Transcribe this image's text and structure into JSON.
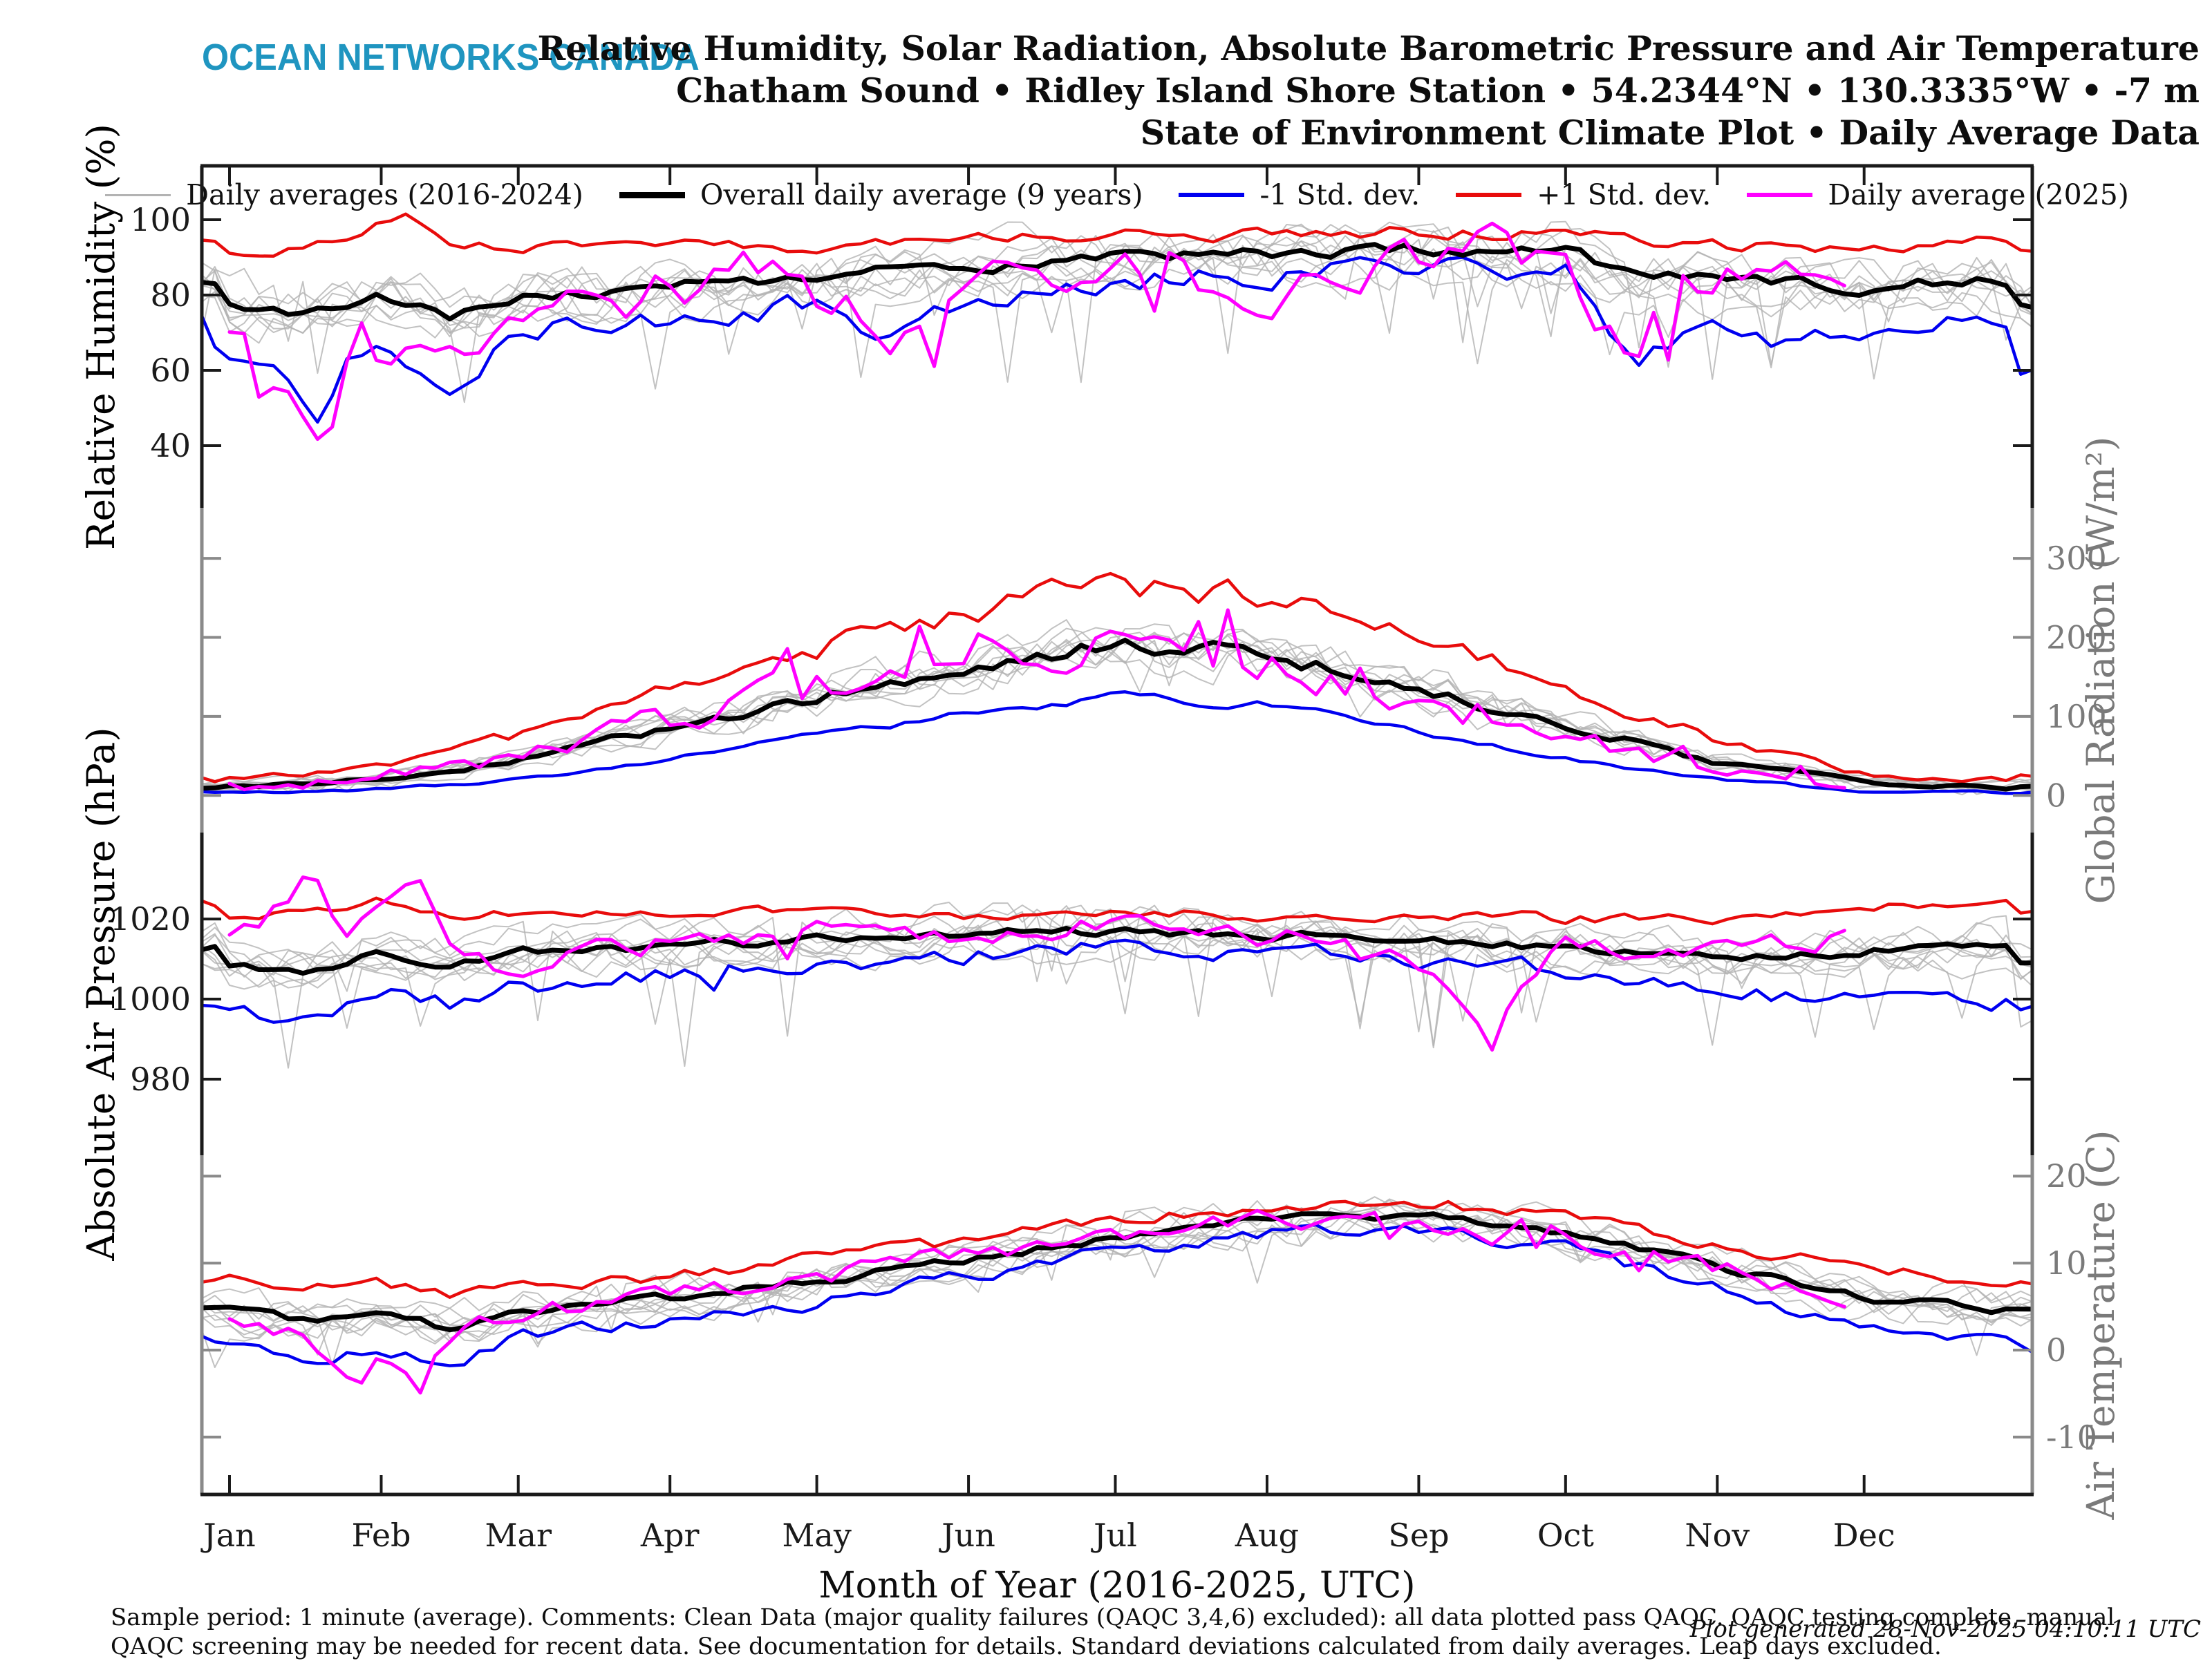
{
  "header": {
    "logo": "OCEAN NETWORKS CANADA",
    "title_lines": [
      "Relative Humidity, Solar Radiation, Absolute Barometric Pressure and Air Temperature",
      "Chatham Sound • Ridley Island Shore Station • 54.2344°N • 130.3335°W • -7 m",
      "State of Environment Climate Plot • Daily Average Data"
    ]
  },
  "legend": [
    {
      "label": "Daily averages (2016-2024)",
      "color": "#b3b3b3",
      "weight": 3
    },
    {
      "label": "Overall daily average (9 years)",
      "color": "#000000",
      "weight": 9
    },
    {
      "label": "-1 Std. dev.",
      "color": "#0000f0",
      "weight": 6
    },
    {
      "label": "+1 Std. dev.",
      "color": "#e80c0c",
      "weight": 6
    },
    {
      "label": "Daily average (2025)",
      "color": "#ff00ff",
      "weight": 6
    }
  ],
  "chart_data": {
    "type": "line",
    "title": "Relative Humidity, Solar Radiation, Absolute Barometric Pressure and Air Temperature",
    "x_axis": {
      "title": "Month of Year (2016-2025, UTC)",
      "tick_labels": [
        "Jan",
        "Feb",
        "Mar",
        "Apr",
        "May",
        "Jun",
        "Jul",
        "Aug",
        "Sep",
        "Oct",
        "Nov",
        "Dec"
      ],
      "tick_days": [
        0,
        31,
        59,
        90,
        120,
        151,
        181,
        212,
        243,
        273,
        304,
        334
      ],
      "days_per_year": 365,
      "grid": false,
      "legend_position": "top-center"
    },
    "series_meta": {
      "gray": {
        "label": "Daily averages (2016-2024)",
        "color": "#b3b3b3",
        "years": 9
      },
      "mean": {
        "label": "Overall daily average (9 years)",
        "color": "#000000"
      },
      "minus": {
        "label": "-1 Std. dev.",
        "color": "#0000f0"
      },
      "plus": {
        "label": "+1 Std. dev.",
        "color": "#e80c0c"
      },
      "y2025": {
        "label": "Daily average (2025)",
        "color": "#ff00ff",
        "ends_day": 331
      }
    },
    "panels": [
      {
        "id": "rh",
        "ylabel": "Relative Humidity (%)",
        "label_side": "left",
        "axis_color": "#1a1a1a",
        "ylim": [
          23.5,
          114.3
        ],
        "yticks": [
          40,
          60,
          80,
          100
        ],
        "seasonal_noise": false,
        "clamp_max": 100.5,
        "gray": {
          "offset": 4.5,
          "noise": 5.5,
          "spike_p": 0.03,
          "spike_amp": -30
        },
        "series": {
          "mean": {
            "noise": 1.6,
            "days": [
              0,
              15,
              31,
              45,
              59,
              90,
              120,
              151,
              181,
              212,
              243,
              273,
              288,
              304,
              334,
              364
            ],
            "values": [
              78,
              76,
              80,
              74,
              80,
              82,
              85,
              87,
              90,
              91,
              92,
              92,
              84,
              85,
              82,
              84
            ]
          },
          "minus": {
            "noise": 3.2,
            "spike_p": 0.02,
            "spike_amp": -14,
            "days": [
              0,
              10,
              17,
              25,
              31,
              45,
              59,
              90,
              120,
              135,
              151,
              181,
              212,
              243,
              273,
              288,
              304,
              319,
              334,
              364
            ],
            "values": [
              62,
              60,
              46,
              64,
              66,
              58,
              70,
              74,
              77,
              70,
              80,
              85,
              86,
              88,
              86,
              62,
              74,
              66,
              72,
              74
            ]
          },
          "plus": {
            "noise": 1.6,
            "no_clamp": true,
            "days": [
              0,
              15,
              31,
              36,
              46,
              59,
              90,
              120,
              151,
              181,
              212,
              243,
              273,
              304,
              334,
              364
            ],
            "values": [
              92,
              93,
              99,
              103,
              93,
              92,
              93,
              93,
              95,
              96,
              96,
              97,
              96,
              93,
              93,
              95
            ]
          },
          "y2025": {
            "noise": 6,
            "spike_p": 0.04,
            "spike_amp": -18,
            "days": [
              0,
              8,
              15,
              19,
              26,
              31,
              45,
              59,
              74,
              90,
              105,
              120,
              135,
              151,
              166,
              181,
              196,
              212,
              227,
              243,
              258,
              273,
              281,
              288,
              295,
              304,
              319,
              331
            ],
            "values": [
              72,
              60,
              48,
              33,
              72,
              58,
              68,
              78,
              74,
              82,
              86,
              80,
              70,
              86,
              88,
              90,
              85,
              83,
              88,
              90,
              92,
              88,
              70,
              60,
              82,
              86,
              86,
              84
            ]
          }
        }
      },
      {
        "id": "rad",
        "ylabel": "Global Radiation (W/m²)",
        "label_side": "right",
        "axis_color": "#8a8a8a",
        "ylim": [
          -47,
          364
        ],
        "yticks": [
          0,
          100,
          200,
          300
        ],
        "seasonal_noise": true,
        "clamp_min": 1,
        "gray": {
          "offset": 12,
          "noise": 26,
          "spike_p": 0.03,
          "spike_amp": -40
        },
        "series": {
          "mean": {
            "noise": 11,
            "days": [
              0,
              31,
              59,
              90,
              120,
              151,
              181,
              212,
              243,
              273,
              304,
              334,
              364
            ],
            "values": [
              12,
              20,
              45,
              85,
              125,
              165,
              190,
              180,
              135,
              90,
              42,
              16,
              10
            ]
          },
          "minus": {
            "noise": 8,
            "days": [
              0,
              31,
              59,
              90,
              120,
              151,
              181,
              212,
              243,
              273,
              304,
              334,
              364
            ],
            "values": [
              4,
              8,
              20,
              45,
              75,
              105,
              125,
              115,
              80,
              48,
              20,
              6,
              3
            ]
          },
          "plus": {
            "noise": 15,
            "days": [
              0,
              31,
              59,
              90,
              120,
              151,
              181,
              212,
              243,
              273,
              304,
              334,
              364
            ],
            "values": [
              22,
              36,
              75,
              130,
              185,
              235,
              265,
              250,
              195,
              140,
              70,
              28,
              18
            ]
          },
          "y2025": {
            "noise": 30,
            "spike_p": 0.06,
            "spike_amp": 70,
            "days": [
              0,
              31,
              59,
              90,
              120,
              151,
              166,
              181,
              212,
              243,
              273,
              304,
              331
            ],
            "values": [
              12,
              22,
              50,
              95,
              135,
              185,
              205,
              195,
              170,
              110,
              70,
              35,
              14
            ]
          }
        }
      },
      {
        "id": "press",
        "ylabel": "Absolute Air Pressure (hPa)",
        "label_side": "left",
        "axis_color": "#1a1a1a",
        "ylim": [
          961,
          1041.6
        ],
        "yticks": [
          980,
          1000,
          1020
        ],
        "seasonal_noise": false,
        "gray": {
          "offset": 3.5,
          "noise": 4,
          "spike_p": 0.02,
          "spike_amp": -28
        },
        "series": {
          "mean": {
            "noise": 1.1,
            "days": [
              0,
              15,
              31,
              45,
              59,
              90,
              120,
              151,
              181,
              212,
              243,
              273,
              304,
              334,
              364
            ],
            "values": [
              1009,
              1007,
              1012,
              1009,
              1012,
              1013,
              1015,
              1016,
              1017,
              1016,
              1015,
              1013,
              1010,
              1012,
              1013
            ]
          },
          "minus": {
            "noise": 2.2,
            "spike_p": 0.015,
            "spike_amp": -10,
            "days": [
              0,
              15,
              31,
              45,
              59,
              90,
              120,
              151,
              181,
              212,
              243,
              273,
              304,
              334,
              364
            ],
            "values": [
              998,
              995,
              1002,
              999,
              1003,
              1006,
              1009,
              1011,
              1013,
              1012,
              1010,
              1007,
              1001,
              1000,
              999
            ]
          },
          "plus": {
            "noise": 1.3,
            "days": [
              0,
              15,
              31,
              45,
              59,
              90,
              120,
              151,
              181,
              212,
              243,
              273,
              304,
              334,
              364
            ],
            "values": [
              1021,
              1022,
              1025,
              1021,
              1021,
              1021,
              1022,
              1021,
              1022,
              1021,
              1021,
              1020,
              1020,
              1023,
              1024
            ]
          },
          "y2025": {
            "noise": 3,
            "spike_p": 0.02,
            "spike_amp": -10,
            "days": [
              0,
              10,
              17,
              24,
              31,
              38,
              45,
              59,
              74,
              90,
              120,
              151,
              181,
              212,
              243,
              251,
              258,
              265,
              273,
              304,
              331
            ],
            "values": [
              1014,
              1022,
              1033,
              1015,
              1026,
              1031,
              1012,
              1008,
              1016,
              1014,
              1017,
              1016,
              1018,
              1016,
              1008,
              1000,
              990,
              1008,
              1013,
              1013,
              1015
            ]
          }
        }
      },
      {
        "id": "temp",
        "ylabel": "Air Temperature (C)",
        "label_side": "right",
        "axis_color": "#8a8a8a",
        "ylim": [
          -16.6,
          22.4
        ],
        "yticks": [
          -10,
          0,
          10,
          20
        ],
        "seasonal_noise": false,
        "gray": {
          "offset": 1.5,
          "noise": 1.6,
          "spike_p": 0.02,
          "spike_amp": -5.5
        },
        "series": {
          "mean": {
            "noise": 0.45,
            "days": [
              0,
              15,
              31,
              45,
              59,
              90,
              120,
              151,
              181,
              212,
              243,
              273,
              304,
              334,
              364
            ],
            "values": [
              4.5,
              3.5,
              4,
              2.5,
              4.5,
              6,
              8,
              10.5,
              13,
              15,
              15.5,
              13.5,
              9.5,
              6,
              4.5
            ]
          },
          "minus": {
            "noise": 0.8,
            "days": [
              0,
              15,
              31,
              45,
              59,
              90,
              120,
              151,
              181,
              212,
              243,
              273,
              304,
              334,
              364
            ],
            "values": [
              0.5,
              -1,
              0.5,
              -2.5,
              1.5,
              3.5,
              5.5,
              8.5,
              11.5,
              13.5,
              14,
              11.5,
              7,
              2.5,
              1
            ]
          },
          "plus": {
            "noise": 0.7,
            "days": [
              0,
              15,
              31,
              45,
              59,
              90,
              120,
              151,
              181,
              212,
              243,
              273,
              304,
              334,
              364
            ],
            "values": [
              8,
              7.5,
              7.5,
              6.5,
              7.5,
              8.5,
              10.5,
              12.5,
              15,
              16.5,
              17,
              15.5,
              12,
              9.5,
              8
            ]
          },
          "y2025": {
            "noise": 1.1,
            "spike_p": 0.02,
            "spike_amp": -3,
            "days": [
              0,
              15,
              26,
              31,
              38,
              45,
              59,
              90,
              120,
              151,
              181,
              212,
              243,
              258,
              265,
              273,
              304,
              319,
              331
            ],
            "values": [
              3.5,
              2,
              -5,
              0,
              -3,
              2,
              4.5,
              6.5,
              8.5,
              11,
              13,
              15,
              14.5,
              13,
              16.5,
              13,
              9.5,
              7,
              6
            ]
          }
        }
      }
    ]
  },
  "footer": {
    "line1": "Sample period: 1 minute (average). Comments: Clean Data (major quality failures (QAQC 3,4,6) excluded): all data plotted pass QAQC. QAQC testing complete, manual",
    "line2": "QAQC screening may be needed for recent data. See documentation for details. Standard deviations calculated from daily averages. Leap days excluded.",
    "generated": "Plot generated 28-Nov-2025 04:10:11 UTC"
  }
}
